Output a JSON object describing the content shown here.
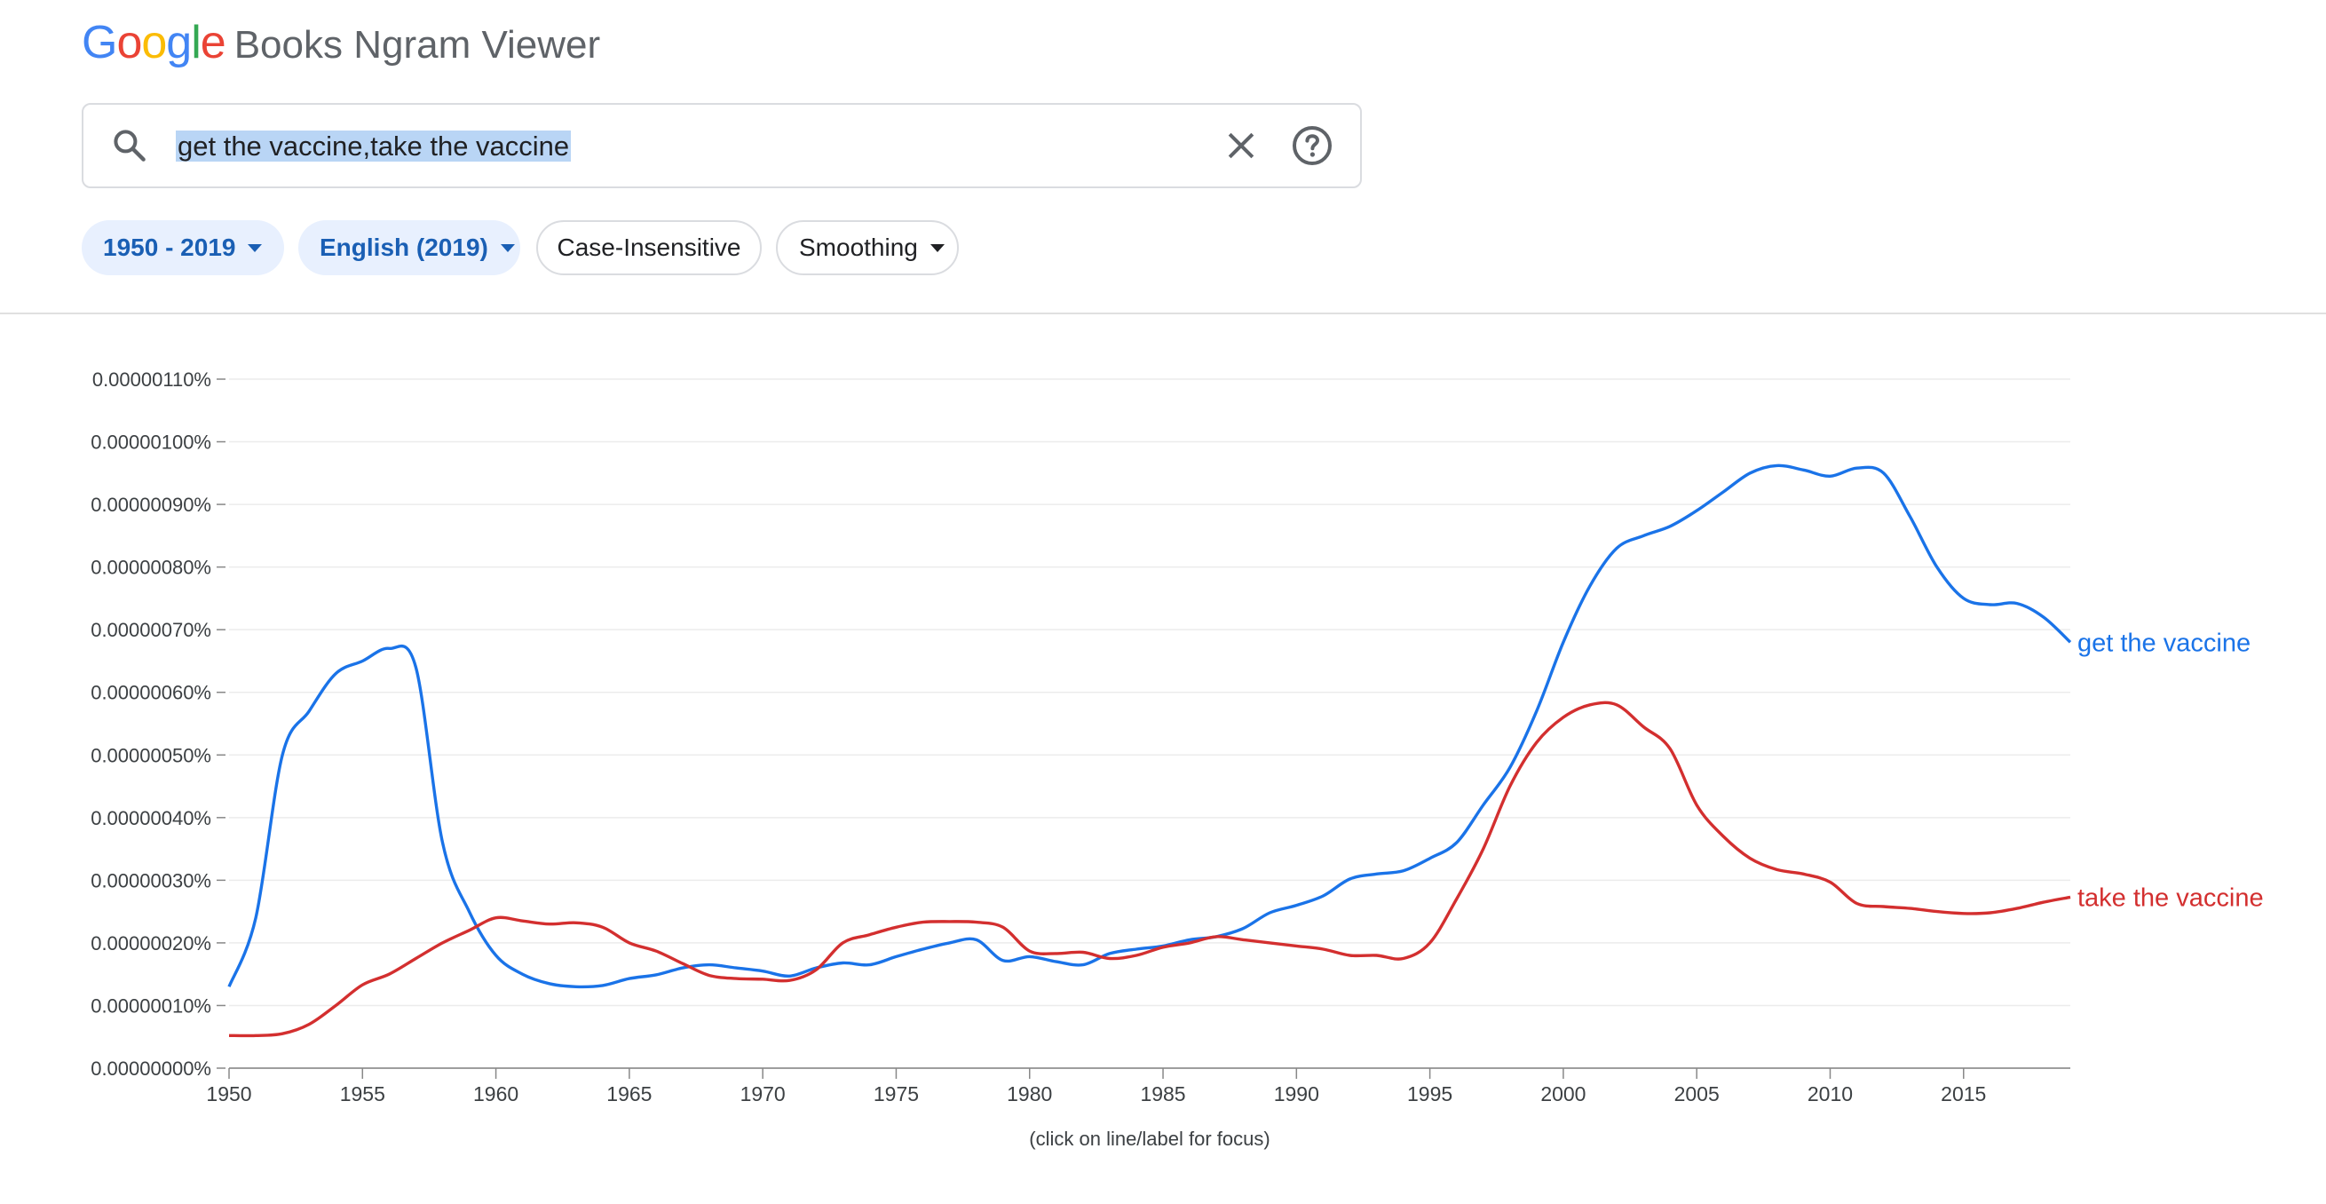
{
  "header": {
    "logo_letters": [
      {
        "char": "G",
        "color": "#4285F4"
      },
      {
        "char": "o",
        "color": "#EA4335"
      },
      {
        "char": "o",
        "color": "#FBBC05"
      },
      {
        "char": "g",
        "color": "#4285F4"
      },
      {
        "char": "l",
        "color": "#34A853"
      },
      {
        "char": "e",
        "color": "#EA4335"
      }
    ],
    "product_name": "Books Ngram Viewer"
  },
  "search": {
    "query": "get the vaccine,take the vaccine",
    "search_icon": "search-icon",
    "clear_icon": "close-icon",
    "help_icon": "help-icon"
  },
  "filters": {
    "year_range": "1950 - 2019",
    "corpus": "English (2019)",
    "case": "Case-Insensitive",
    "smoothing": "Smoothing"
  },
  "footnote": "(click on line/label for focus)",
  "chart_data": {
    "type": "line",
    "x": [
      1950,
      1951,
      1952,
      1953,
      1954,
      1955,
      1956,
      1957,
      1958,
      1959,
      1960,
      1961,
      1962,
      1963,
      1964,
      1965,
      1966,
      1967,
      1968,
      1969,
      1970,
      1971,
      1972,
      1973,
      1974,
      1975,
      1976,
      1977,
      1978,
      1979,
      1980,
      1981,
      1982,
      1983,
      1984,
      1985,
      1986,
      1987,
      1988,
      1989,
      1990,
      1991,
      1992,
      1993,
      1994,
      1995,
      1996,
      1997,
      1998,
      1999,
      2000,
      2001,
      2002,
      2003,
      2004,
      2005,
      2006,
      2007,
      2008,
      2009,
      2010,
      2011,
      2012,
      2013,
      2014,
      2015,
      2016,
      2017,
      2018,
      2019
    ],
    "series": [
      {
        "name": "get the vaccine",
        "color": "#1a73e8",
        "values": [
          0.13,
          0.24,
          0.5,
          0.57,
          0.63,
          0.65,
          0.67,
          0.64,
          0.36,
          0.25,
          0.18,
          0.15,
          0.135,
          0.13,
          0.132,
          0.143,
          0.149,
          0.16,
          0.165,
          0.16,
          0.155,
          0.147,
          0.16,
          0.168,
          0.165,
          0.178,
          0.19,
          0.2,
          0.205,
          0.172,
          0.178,
          0.17,
          0.165,
          0.183,
          0.19,
          0.195,
          0.205,
          0.21,
          0.223,
          0.248,
          0.26,
          0.275,
          0.302,
          0.31,
          0.315,
          0.335,
          0.36,
          0.42,
          0.48,
          0.57,
          0.68,
          0.77,
          0.83,
          0.85,
          0.865,
          0.89,
          0.92,
          0.95,
          0.962,
          0.955,
          0.945,
          0.958,
          0.95,
          0.88,
          0.8,
          0.75,
          0.74,
          0.742,
          0.72,
          0.68
        ]
      },
      {
        "name": "take the vaccine",
        "color": "#d32f2f",
        "values": [
          0.052,
          0.052,
          0.055,
          0.07,
          0.1,
          0.133,
          0.15,
          0.175,
          0.2,
          0.22,
          0.24,
          0.235,
          0.23,
          0.232,
          0.225,
          0.2,
          0.187,
          0.167,
          0.148,
          0.143,
          0.142,
          0.14,
          0.157,
          0.2,
          0.213,
          0.225,
          0.233,
          0.234,
          0.233,
          0.225,
          0.187,
          0.183,
          0.185,
          0.175,
          0.18,
          0.193,
          0.2,
          0.21,
          0.205,
          0.2,
          0.195,
          0.19,
          0.18,
          0.18,
          0.175,
          0.2,
          0.27,
          0.35,
          0.45,
          0.52,
          0.56,
          0.58,
          0.58,
          0.545,
          0.51,
          0.42,
          0.37,
          0.335,
          0.317,
          0.31,
          0.297,
          0.263,
          0.258,
          0.255,
          0.25,
          0.247,
          0.248,
          0.255,
          0.265,
          0.273
        ]
      }
    ],
    "y_ticks": [
      "0.00000000%",
      "0.00000010%",
      "0.00000020%",
      "0.00000030%",
      "0.00000040%",
      "0.00000050%",
      "0.00000060%",
      "0.00000070%",
      "0.00000080%",
      "0.00000090%",
      "0.00000100%",
      "0.00000110%"
    ],
    "x_ticks": [
      1950,
      1955,
      1960,
      1965,
      1970,
      1975,
      1980,
      1985,
      1990,
      1995,
      2000,
      2005,
      2010,
      2015
    ],
    "xlim": [
      1950,
      2019
    ],
    "ylim": [
      0,
      1.1
    ],
    "y_unit_note": "values in units of 0.0000001%",
    "grid": true,
    "legend": "line-end labels"
  }
}
